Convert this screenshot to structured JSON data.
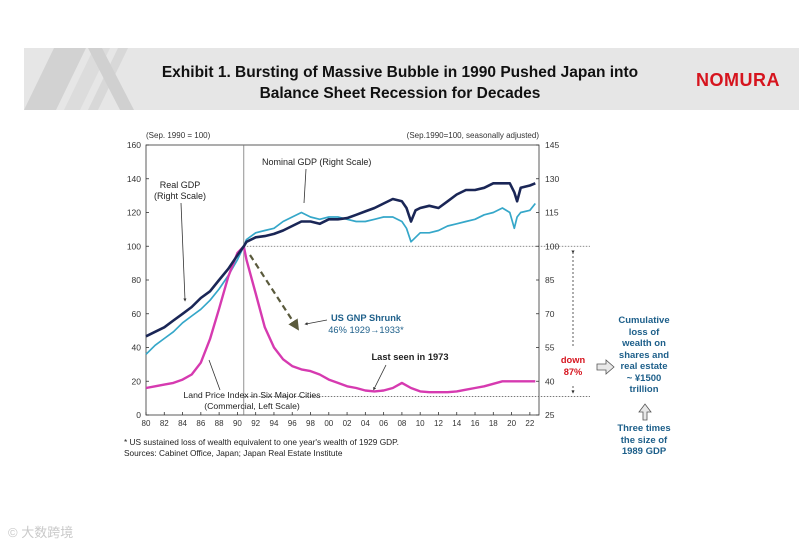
{
  "header": {
    "title_line1": "Exhibit 1. Bursting of Massive Bubble in 1990 Pushed Japan into",
    "title_line2": "Balance Sheet Recession for Decades",
    "brand": "NOMURA"
  },
  "chart_data": {
    "type": "line",
    "left_axis_note": "(Sep. 1990 = 100)",
    "right_axis_note": "(Sep.1990=100, seasonally adjusted)",
    "left_axis": {
      "ylim": [
        0,
        160
      ],
      "ticks": [
        "0",
        "20",
        "40",
        "60",
        "80",
        "100",
        "120",
        "140",
        "160"
      ]
    },
    "right_axis": {
      "ylim": [
        25,
        145
      ],
      "ticks": [
        "25",
        "40",
        "55",
        "70",
        "85",
        "100",
        "115",
        "130",
        "145"
      ]
    },
    "x_tick_labels": [
      "80",
      "82",
      "84",
      "86",
      "88",
      "90",
      "92",
      "94",
      "96",
      "98",
      "00",
      "02",
      "04",
      "06",
      "08",
      "10",
      "12",
      "14",
      "16",
      "18",
      "20",
      "22"
    ],
    "colors": {
      "nominal": "#1a2656",
      "real": "#35a7c9",
      "land": "#d63ab0",
      "arrow": "#5a5a3c"
    },
    "series": [
      {
        "name": "Nominal GDP (Right Scale)",
        "axis": "right",
        "x": [
          1980,
          1981,
          1982,
          1983,
          1984,
          1985,
          1986,
          1987,
          1988,
          1989,
          1990,
          1990.7,
          1991,
          1992,
          1993,
          1994,
          1995,
          1996,
          1997,
          1998,
          1999,
          2000,
          2001,
          2002,
          2003,
          2004,
          2005,
          2006,
          2007,
          2008,
          2008.5,
          2009,
          2009.5,
          2010,
          2011,
          2012,
          2013,
          2014,
          2015,
          2016,
          2017,
          2018,
          2019,
          2019.8,
          2020.3,
          2020.6,
          2021,
          2022,
          2022.6
        ],
        "y": [
          60,
          62,
          64,
          67,
          70,
          73,
          77,
          80,
          85,
          90,
          96,
          100,
          102,
          104,
          104.5,
          105.5,
          107,
          109,
          111,
          111,
          110,
          112,
          112,
          112.5,
          114,
          115.5,
          117,
          119,
          121,
          120,
          117,
          111,
          116,
          117,
          118,
          117,
          120,
          123,
          125,
          125,
          126,
          128,
          128,
          128,
          124,
          120,
          126,
          127,
          128
        ]
      },
      {
        "name": "Real GDP (Right Scale)",
        "axis": "right",
        "x": [
          1980,
          1981,
          1982,
          1983,
          1984,
          1985,
          1986,
          1987,
          1988,
          1989,
          1990,
          1990.7,
          1991,
          1992,
          1993,
          1994,
          1995,
          1996,
          1997,
          1998,
          1999,
          2000,
          2001,
          2002,
          2003,
          2004,
          2005,
          2006,
          2007,
          2008,
          2008.5,
          2009,
          2009.5,
          2010,
          2011,
          2012,
          2013,
          2014,
          2015,
          2016,
          2017,
          2018,
          2019,
          2019.8,
          2020.3,
          2020.6,
          2021,
          2022,
          2022.6
        ],
        "y": [
          52,
          56,
          59,
          62,
          66,
          69,
          72,
          76,
          81,
          87,
          94,
          100,
          103,
          106,
          107,
          108,
          111,
          113,
          115,
          113,
          112,
          113,
          113,
          112,
          111,
          111,
          112,
          113,
          113,
          111,
          108,
          102,
          104,
          106,
          106,
          107,
          109,
          110,
          111,
          112,
          114,
          115,
          117,
          115,
          108,
          113,
          115,
          116,
          119
        ]
      },
      {
        "name": "Land Price Index in Six Major Cities (Commercial, Left Scale)",
        "axis": "left",
        "x": [
          1980,
          1981,
          1982,
          1983,
          1984,
          1985,
          1986,
          1987,
          1988,
          1989,
          1990,
          1990.7,
          1991,
          1992,
          1993,
          1994,
          1995,
          1996,
          1997,
          1998,
          1999,
          2000,
          2001,
          2002,
          2003,
          2004,
          2005,
          2006,
          2007,
          2008,
          2009,
          2010,
          2011,
          2012,
          2013,
          2014,
          2015,
          2016,
          2017,
          2018,
          2019,
          2020,
          2021,
          2022,
          2022.6
        ],
        "y": [
          16,
          17,
          18,
          19,
          21,
          24,
          31,
          45,
          63,
          82,
          96,
          100,
          92,
          72,
          52,
          40,
          33,
          29,
          27,
          26,
          24,
          21,
          19,
          17,
          16,
          14.5,
          14,
          14.5,
          16,
          19,
          16,
          14,
          13.5,
          13.5,
          13.5,
          14,
          15,
          16,
          17,
          18.5,
          20,
          20,
          20,
          20,
          20
        ]
      }
    ],
    "reference_lines": [
      {
        "axis": "right",
        "y": 100
      },
      {
        "axis": "left",
        "y": 11
      },
      {
        "axis": "x",
        "x": 1990.7
      }
    ],
    "annotations": {
      "nominal_label": "Nominal GDP (Right Scale)",
      "real_label_1": "Real GDP",
      "real_label_2": "(Right Scale)",
      "land_label_1": "Land Price Index in Six Major Cities",
      "land_label_2": "(Commercial, Left Scale)",
      "us_label_1": "US GNP Shrunk",
      "us_label_2": "46% 1929→1933*",
      "last_seen": "Last seen in 1973",
      "down_1": "down",
      "down_2": "87%"
    }
  },
  "sidebar": {
    "cumulative_lines": [
      "Cumulative",
      "loss of",
      "wealth on",
      "shares and",
      "real estate",
      "~ ¥1500",
      "trillion"
    ],
    "three_times_lines": [
      "Three times",
      "the size of",
      "1989 GDP"
    ]
  },
  "footnote": {
    "line1": "* US sustained loss of wealth equivalent to one year's wealth of 1929 GDP.",
    "line2": "Sources: Cabinet Office, Japan; Japan Real Estate Institute"
  },
  "watermark": "© 大数跨境"
}
